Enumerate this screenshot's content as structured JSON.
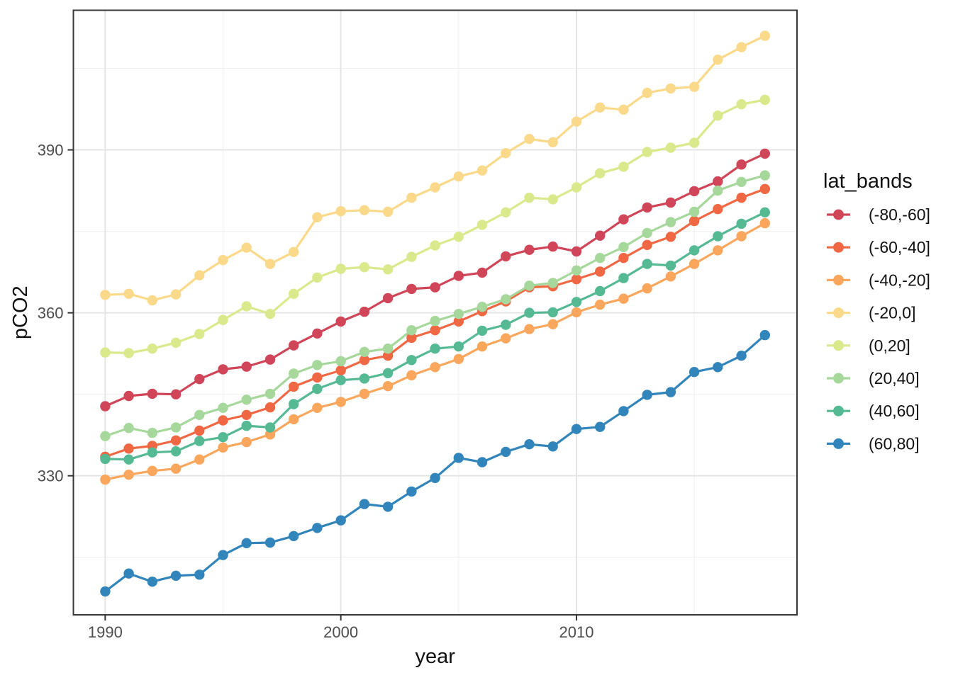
{
  "figure": {
    "background": "#ffffff",
    "panel_border_color": "#383838",
    "grid_major_color": "#e3e3e3",
    "grid_minor_color": "#efefef",
    "tick_color": "#333333",
    "tick_label_color": "#4d4d4d",
    "text_color": "#111111"
  },
  "chart_data": {
    "type": "line",
    "title": "",
    "xlabel": "year",
    "ylabel": "pCO2",
    "legend_title": "lat_bands",
    "legend_position": "right",
    "grid": true,
    "marker": "point",
    "xlim": [
      1988.65,
      2019.36
    ],
    "ylim": [
      304.4,
      415.7
    ],
    "x_ticks": [
      1990,
      2000,
      2010
    ],
    "x_minor_ticks": [
      1995,
      2005,
      2015
    ],
    "y_ticks": [
      330,
      360,
      390
    ],
    "y_minor_ticks": [
      315,
      345,
      375,
      405
    ],
    "x": [
      1990,
      1991,
      1992,
      1993,
      1994,
      1995,
      1996,
      1997,
      1998,
      1999,
      2000,
      2001,
      2002,
      2003,
      2004,
      2005,
      2006,
      2007,
      2008,
      2009,
      2010,
      2011,
      2012,
      2013,
      2014,
      2015,
      2016,
      2017,
      2018
    ],
    "series": [
      {
        "name": "(-80,-60]",
        "color": "#d04558",
        "values": [
          342.8,
          344.7,
          345.1,
          345.0,
          347.8,
          349.6,
          350.1,
          351.4,
          354.0,
          356.2,
          358.4,
          360.2,
          362.7,
          364.4,
          364.7,
          366.8,
          367.4,
          370.4,
          371.6,
          372.2,
          371.3,
          374.2,
          377.2,
          379.4,
          380.3,
          382.4,
          384.2,
          387.3,
          389.3
        ]
      },
      {
        "name": "(-60,-40]",
        "color": "#f06843",
        "values": [
          333.5,
          335.0,
          335.5,
          336.5,
          338.3,
          340.2,
          341.2,
          342.6,
          346.4,
          348.1,
          349.4,
          351.3,
          352.1,
          355.4,
          356.8,
          358.4,
          360.3,
          362.1,
          364.7,
          364.9,
          366.2,
          367.6,
          370.1,
          372.5,
          374.0,
          376.9,
          379.1,
          381.2,
          382.8
        ]
      },
      {
        "name": "(-40,-20]",
        "color": "#faa65c",
        "values": [
          329.3,
          330.2,
          330.9,
          331.3,
          333.0,
          335.2,
          336.2,
          337.6,
          340.4,
          342.5,
          343.6,
          345.1,
          346.5,
          348.5,
          350.0,
          351.5,
          353.8,
          355.3,
          357.0,
          357.9,
          360.1,
          361.5,
          362.6,
          364.5,
          366.7,
          369.0,
          371.5,
          374.1,
          376.5
        ]
      },
      {
        "name": "(-20,0]",
        "color": "#fbd98a",
        "values": [
          363.3,
          363.5,
          362.3,
          363.4,
          366.9,
          369.7,
          372.0,
          369.0,
          371.2,
          377.6,
          378.7,
          378.9,
          378.6,
          381.2,
          383.1,
          385.1,
          386.2,
          389.4,
          392.0,
          391.4,
          395.2,
          397.8,
          397.4,
          400.5,
          401.3,
          401.6,
          406.6,
          408.9,
          411.0
        ]
      },
      {
        "name": "(0,20]",
        "color": "#d9e98c",
        "values": [
          352.7,
          352.6,
          353.4,
          354.5,
          356.1,
          358.7,
          361.2,
          359.8,
          363.5,
          366.5,
          368.1,
          368.4,
          368.0,
          370.3,
          372.4,
          374.0,
          376.2,
          378.5,
          381.2,
          380.9,
          383.1,
          385.7,
          386.9,
          389.6,
          390.4,
          391.3,
          396.3,
          398.4,
          399.2
        ]
      },
      {
        "name": "(20,40]",
        "color": "#a6d79b",
        "values": [
          337.3,
          338.8,
          337.9,
          338.9,
          341.2,
          342.5,
          344.0,
          345.1,
          348.8,
          350.4,
          351.1,
          352.8,
          353.4,
          356.8,
          358.5,
          359.8,
          361.1,
          362.5,
          365.0,
          365.5,
          367.8,
          370.1,
          372.1,
          374.7,
          376.7,
          378.6,
          382.5,
          384.1,
          385.3
        ]
      },
      {
        "name": "(40,60]",
        "color": "#55ba94",
        "values": [
          333.1,
          333.0,
          334.3,
          334.5,
          336.4,
          337.1,
          339.2,
          338.9,
          343.2,
          346.0,
          347.6,
          347.9,
          348.9,
          351.3,
          353.4,
          353.8,
          356.7,
          357.8,
          360.0,
          360.1,
          362.0,
          364.0,
          366.4,
          369.0,
          368.7,
          371.5,
          374.1,
          376.4,
          378.5
        ]
      },
      {
        "name": "(60,80]",
        "color": "#3285bb",
        "values": [
          308.7,
          312.0,
          310.5,
          311.6,
          311.8,
          315.4,
          317.6,
          317.7,
          318.9,
          320.4,
          321.8,
          324.8,
          324.3,
          327.1,
          329.6,
          333.3,
          332.5,
          334.4,
          335.8,
          335.4,
          338.6,
          339.0,
          341.9,
          344.9,
          345.4,
          349.1,
          350.0,
          352.1,
          355.9
        ]
      }
    ]
  }
}
